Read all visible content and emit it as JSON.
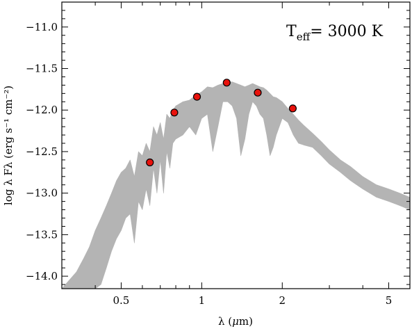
{
  "chart_data": {
    "type": "line",
    "title": "",
    "annotation": {
      "base": "T",
      "subscript": "eff",
      "rest": "= 3000 K"
    },
    "xlabel": {
      "prefix": "λ (",
      "mu": "μ",
      "suffix": "m)"
    },
    "ylabel": "log λ Fλ (erg s⁻¹ cm⁻²)",
    "x_scale": "log",
    "xlim": [
      0.3,
      6.0
    ],
    "ylim": [
      -14.15,
      -10.7
    ],
    "x_ticks_major": [
      {
        "value": 0.5,
        "label": "0.5"
      },
      {
        "value": 1,
        "label": "1"
      },
      {
        "value": 2,
        "label": "2"
      },
      {
        "value": 5,
        "label": "5"
      }
    ],
    "x_ticks_minor": [
      0.3,
      0.4,
      0.6,
      0.7,
      0.8,
      0.9,
      3,
      4,
      6
    ],
    "y_ticks_major": [
      {
        "value": -11.0,
        "label": "−11.0"
      },
      {
        "value": -11.5,
        "label": "−11.5"
      },
      {
        "value": -12.0,
        "label": "−12.0"
      },
      {
        "value": -12.5,
        "label": "−12.5"
      },
      {
        "value": -13.0,
        "label": "−13.0"
      },
      {
        "value": -13.5,
        "label": "−13.5"
      },
      {
        "value": -14.0,
        "label": "−14.0"
      }
    ],
    "y_minor_step": 0.1,
    "series": [
      {
        "kind": "model_spectrum",
        "color": "#b4b4b4",
        "x": [
          0.3,
          0.34,
          0.36,
          0.38,
          0.4,
          0.42,
          0.44,
          0.46,
          0.48,
          0.5,
          0.52,
          0.54,
          0.56,
          0.58,
          0.6,
          0.62,
          0.64,
          0.66,
          0.68,
          0.7,
          0.72,
          0.74,
          0.76,
          0.78,
          0.8,
          0.85,
          0.9,
          0.95,
          1.0,
          1.05,
          1.1,
          1.15,
          1.2,
          1.25,
          1.3,
          1.35,
          1.4,
          1.45,
          1.5,
          1.55,
          1.6,
          1.65,
          1.7,
          1.75,
          1.8,
          1.85,
          1.9,
          2.0,
          2.1,
          2.2,
          2.3,
          2.4,
          2.6,
          2.8,
          3.0,
          3.3,
          3.6,
          4.0,
          4.5,
          5.0,
          5.5,
          6.0
        ],
        "upper": [
          -14.15,
          -13.95,
          -13.8,
          -13.65,
          -13.45,
          -13.3,
          -13.15,
          -13.0,
          -12.85,
          -12.75,
          -12.7,
          -12.6,
          -12.8,
          -12.5,
          -12.55,
          -12.4,
          -12.5,
          -12.2,
          -12.3,
          -12.15,
          -12.35,
          -12.05,
          -12.1,
          -12.0,
          -11.95,
          -11.9,
          -11.88,
          -11.82,
          -11.78,
          -11.72,
          -11.73,
          -11.7,
          -11.68,
          -11.67,
          -11.66,
          -11.68,
          -11.7,
          -11.72,
          -11.7,
          -11.68,
          -11.7,
          -11.72,
          -11.73,
          -11.76,
          -11.8,
          -11.84,
          -11.85,
          -11.9,
          -11.98,
          -12.05,
          -12.12,
          -12.18,
          -12.28,
          -12.38,
          -12.48,
          -12.6,
          -12.68,
          -12.8,
          -12.9,
          -12.95,
          -13.0,
          -13.05
        ],
        "lower": [
          -14.15,
          -14.15,
          -14.15,
          -14.15,
          -14.15,
          -14.1,
          -13.9,
          -13.7,
          -13.55,
          -13.45,
          -13.3,
          -13.25,
          -13.6,
          -13.1,
          -13.2,
          -12.95,
          -13.15,
          -12.7,
          -13.0,
          -12.6,
          -13.0,
          -12.5,
          -12.7,
          -12.4,
          -12.35,
          -12.3,
          -12.2,
          -12.3,
          -12.1,
          -12.05,
          -12.5,
          -12.2,
          -11.9,
          -11.9,
          -11.95,
          -12.1,
          -12.55,
          -12.35,
          -12.05,
          -11.9,
          -11.95,
          -12.05,
          -12.1,
          -12.3,
          -12.55,
          -12.45,
          -12.3,
          -12.1,
          -12.15,
          -12.3,
          -12.4,
          -12.42,
          -12.45,
          -12.55,
          -12.65,
          -12.75,
          -12.85,
          -12.95,
          -13.05,
          -13.1,
          -13.15,
          -13.2
        ]
      },
      {
        "kind": "photometry",
        "marker": "circle",
        "color": "#e8120c",
        "edge_color": "#000000",
        "x": [
          0.64,
          0.79,
          0.96,
          1.24,
          1.62,
          2.19
        ],
        "y": [
          -12.63,
          -12.03,
          -11.84,
          -11.67,
          -11.79,
          -11.98
        ]
      }
    ],
    "grid": false,
    "legend": "none"
  }
}
